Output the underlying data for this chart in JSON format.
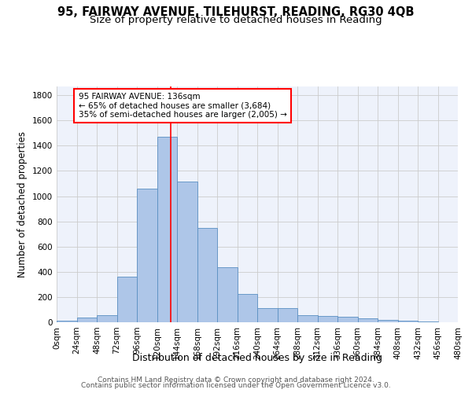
{
  "title1": "95, FAIRWAY AVENUE, TILEHURST, READING, RG30 4QB",
  "title2": "Size of property relative to detached houses in Reading",
  "xlabel": "Distribution of detached houses by size in Reading",
  "ylabel": "Number of detached properties",
  "footer1": "Contains HM Land Registry data © Crown copyright and database right 2024.",
  "footer2": "Contains public sector information licensed under the Open Government Licence v3.0.",
  "bin_labels": [
    "0sqm",
    "24sqm",
    "48sqm",
    "72sqm",
    "96sqm",
    "120sqm",
    "144sqm",
    "168sqm",
    "192sqm",
    "216sqm",
    "240sqm",
    "264sqm",
    "288sqm",
    "312sqm",
    "336sqm",
    "360sqm",
    "384sqm",
    "408sqm",
    "432sqm",
    "456sqm",
    "480sqm"
  ],
  "bin_edges": [
    0,
    24,
    48,
    72,
    96,
    120,
    144,
    168,
    192,
    216,
    240,
    264,
    288,
    312,
    336,
    360,
    384,
    408,
    432,
    456,
    480
  ],
  "bar_heights": [
    10,
    35,
    55,
    360,
    1060,
    1470,
    1115,
    745,
    435,
    225,
    110,
    110,
    55,
    50,
    45,
    30,
    20,
    10,
    5,
    2
  ],
  "bar_color": "#aec6e8",
  "bar_edge_color": "#5a8fc2",
  "property_sqm": 136,
  "vline_color": "red",
  "annotation_text1": "95 FAIRWAY AVENUE: 136sqm",
  "annotation_text2": "← 65% of detached houses are smaller (3,684)",
  "annotation_text3": "35% of semi-detached houses are larger (2,005) →",
  "annotation_box_color": "white",
  "annotation_box_edge_color": "red",
  "ylim": [
    0,
    1870
  ],
  "yticks": [
    0,
    200,
    400,
    600,
    800,
    1000,
    1200,
    1400,
    1600,
    1800
  ],
  "background_color": "#eef2fb",
  "grid_color": "#cccccc",
  "title1_fontsize": 10.5,
  "title2_fontsize": 9.5,
  "xlabel_fontsize": 9,
  "ylabel_fontsize": 8.5,
  "tick_fontsize": 7.5,
  "footer_fontsize": 6.5,
  "ann_fontsize": 7.5
}
